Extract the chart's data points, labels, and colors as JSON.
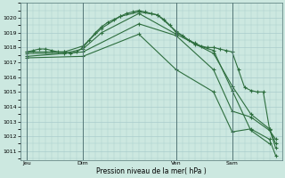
{
  "background_color": "#cce8e0",
  "grid_color": "#aacccc",
  "line_color": "#2d6e3e",
  "ylim": [
    1010.4,
    1021.0
  ],
  "yticks": [
    1011,
    1012,
    1013,
    1014,
    1015,
    1016,
    1017,
    1018,
    1019,
    1020
  ],
  "xlabel": "Pression niveau de la mer( hPa )",
  "day_labels": [
    "Jeu",
    "Dim",
    "Ven",
    "Sam"
  ],
  "day_positions": [
    0,
    9,
    24,
    33
  ],
  "xlim": [
    -1,
    41
  ],
  "series1_x": [
    0,
    1,
    2,
    3,
    4,
    5,
    6,
    7,
    8,
    9,
    10,
    11,
    12,
    13,
    14,
    15,
    16,
    17,
    18,
    19,
    20,
    21,
    22,
    23,
    24,
    25,
    26,
    27,
    28,
    29,
    30,
    31,
    32,
    33,
    34,
    35,
    36,
    37,
    38,
    39,
    40
  ],
  "series1_y": [
    1017.7,
    1017.8,
    1017.9,
    1017.9,
    1017.8,
    1017.7,
    1017.7,
    1017.6,
    1017.7,
    1018.0,
    1018.5,
    1019.0,
    1019.4,
    1019.7,
    1019.9,
    1020.1,
    1020.3,
    1020.4,
    1020.5,
    1020.4,
    1020.3,
    1020.2,
    1019.9,
    1019.5,
    1019.0,
    1018.8,
    1018.5,
    1018.3,
    1018.1,
    1018.0,
    1018.0,
    1017.9,
    1017.8,
    1017.7,
    1016.5,
    1015.3,
    1015.1,
    1015.0,
    1015.0,
    1012.5,
    1011.2
  ],
  "series2_x": [
    0,
    3,
    6,
    9,
    12,
    15,
    18,
    21,
    24,
    27,
    30,
    33,
    36,
    39
  ],
  "series2_y": [
    1017.7,
    1017.7,
    1017.7,
    1018.1,
    1019.3,
    1020.1,
    1020.4,
    1020.2,
    1019.1,
    1018.2,
    1017.8,
    1015.1,
    1012.4,
    1011.5
  ],
  "series3_x": [
    0,
    6,
    9,
    12,
    18,
    24,
    30,
    33,
    36,
    39,
    40
  ],
  "series3_y": [
    1017.6,
    1017.6,
    1017.9,
    1019.0,
    1020.3,
    1018.9,
    1017.6,
    1015.4,
    1013.5,
    1012.5,
    1011.5
  ],
  "series4_x": [
    0,
    9,
    18,
    24,
    30,
    33,
    36,
    39,
    40
  ],
  "series4_y": [
    1017.4,
    1017.7,
    1019.6,
    1018.8,
    1016.5,
    1013.7,
    1013.3,
    1012.4,
    1011.8
  ],
  "series5_x": [
    0,
    9,
    18,
    24,
    30,
    33,
    36,
    39,
    40
  ],
  "series5_y": [
    1017.3,
    1017.4,
    1018.9,
    1016.5,
    1015.0,
    1012.3,
    1012.5,
    1011.8,
    1010.7
  ]
}
